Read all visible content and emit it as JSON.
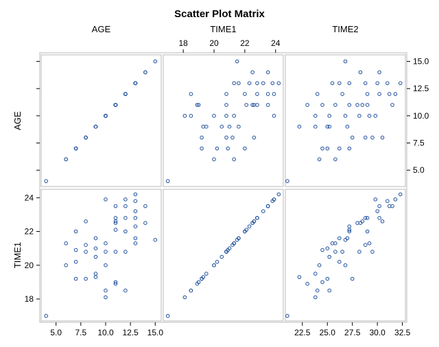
{
  "chart_data": {
    "type": "scatter",
    "title": "Scatter Plot Matrix",
    "variables": [
      "AGE",
      "TIME1",
      "TIME2"
    ],
    "marker_color": "#1f4f9a",
    "panel_border_color": "#b8b8b8",
    "axes": {
      "AGE": {
        "range": [
          3.5,
          15.6
        ],
        "ticks": [
          5.0,
          7.5,
          10.0,
          12.5,
          15.0
        ],
        "tick_labels": [
          "5.0",
          "7.5",
          "10.0",
          "12.5",
          "15.0"
        ]
      },
      "TIME1": {
        "range": [
          16.7,
          24.5
        ],
        "ticks": [
          18,
          20,
          22,
          24
        ],
        "tick_labels": [
          "18",
          "20",
          "22",
          "24"
        ]
      },
      "TIME2": {
        "range": [
          20.8,
          32.8
        ],
        "ticks": [
          22.5,
          25.0,
          27.5,
          30.0,
          32.5
        ],
        "tick_labels": [
          "22.5",
          "25.0",
          "27.5",
          "30.0",
          "32.5"
        ]
      }
    },
    "visible_panels": [
      {
        "row": "AGE",
        "col": "AGE"
      },
      {
        "row": "AGE",
        "col": "TIME1"
      },
      {
        "row": "AGE",
        "col": "TIME2"
      },
      {
        "row": "TIME1",
        "col": "AGE"
      },
      {
        "row": "TIME1",
        "col": "TIME1"
      },
      {
        "row": "TIME1",
        "col": "TIME2"
      }
    ],
    "observations": [
      {
        "AGE": 4,
        "TIME1": 17.0,
        "TIME2": 21.0
      },
      {
        "AGE": 6,
        "TIME1": 20.0,
        "TIME2": 24.2
      },
      {
        "AGE": 6,
        "TIME1": 21.3,
        "TIME2": 25.8
      },
      {
        "AGE": 7,
        "TIME1": 19.2,
        "TIME2": 25.0
      },
      {
        "AGE": 7,
        "TIME1": 20.2,
        "TIME2": 26.2
      },
      {
        "AGE": 7,
        "TIME1": 20.9,
        "TIME2": 24.5
      },
      {
        "AGE": 7,
        "TIME1": 22.0,
        "TIME2": 27.2
      },
      {
        "AGE": 8,
        "TIME1": 19.2,
        "TIME2": 27.5
      },
      {
        "AGE": 8,
        "TIME1": 20.8,
        "TIME2": 29.5
      },
      {
        "AGE": 8,
        "TIME1": 21.2,
        "TIME2": 28.8
      },
      {
        "AGE": 8,
        "TIME1": 22.6,
        "TIME2": 30.5
      },
      {
        "AGE": 9,
        "TIME1": 19.3,
        "TIME2": 22.2
      },
      {
        "AGE": 9,
        "TIME1": 19.5,
        "TIME2": 23.8
      },
      {
        "AGE": 9,
        "TIME1": 20.5,
        "TIME2": 25.2
      },
      {
        "AGE": 9,
        "TIME1": 21.0,
        "TIME2": 25.0
      },
      {
        "AGE": 9,
        "TIME1": 21.6,
        "TIME2": 27.0
      },
      {
        "AGE": 10,
        "TIME1": 18.1,
        "TIME2": 23.8
      },
      {
        "AGE": 10,
        "TIME1": 18.5,
        "TIME2": 25.2
      },
      {
        "AGE": 10,
        "TIME1": 20.0,
        "TIME2": 26.8
      },
      {
        "AGE": 10,
        "TIME1": 20.8,
        "TIME2": 28.2
      },
      {
        "AGE": 10,
        "TIME1": 21.3,
        "TIME2": 29.2
      },
      {
        "AGE": 10,
        "TIME1": 23.9,
        "TIME2": 29.8
      },
      {
        "AGE": 11,
        "TIME1": 18.9,
        "TIME2": 23.0
      },
      {
        "AGE": 11,
        "TIME1": 19.0,
        "TIME2": 24.5
      },
      {
        "AGE": 11,
        "TIME1": 20.8,
        "TIME2": 25.8
      },
      {
        "AGE": 11,
        "TIME1": 22.1,
        "TIME2": 27.2
      },
      {
        "AGE": 11,
        "TIME1": 22.5,
        "TIME2": 28.0
      },
      {
        "AGE": 11,
        "TIME1": 22.6,
        "TIME2": 28.5
      },
      {
        "AGE": 11,
        "TIME1": 22.8,
        "TIME2": 29.0
      },
      {
        "AGE": 11,
        "TIME1": 23.5,
        "TIME2": 31.5
      },
      {
        "AGE": 12,
        "TIME1": 18.5,
        "TIME2": 24.0
      },
      {
        "AGE": 12,
        "TIME1": 20.8,
        "TIME2": 26.5
      },
      {
        "AGE": 12,
        "TIME1": 22.0,
        "TIME2": 29.0
      },
      {
        "AGE": 12,
        "TIME1": 22.8,
        "TIME2": 30.2
      },
      {
        "AGE": 12,
        "TIME1": 23.5,
        "TIME2": 31.2
      },
      {
        "AGE": 12,
        "TIME1": 23.9,
        "TIME2": 31.8
      },
      {
        "AGE": 13,
        "TIME1": 21.3,
        "TIME2": 25.5
      },
      {
        "AGE": 13,
        "TIME1": 21.6,
        "TIME2": 26.2
      },
      {
        "AGE": 13,
        "TIME1": 22.3,
        "TIME2": 27.2
      },
      {
        "AGE": 13,
        "TIME1": 22.8,
        "TIME2": 28.8
      },
      {
        "AGE": 13,
        "TIME1": 23.2,
        "TIME2": 30.0
      },
      {
        "AGE": 13,
        "TIME1": 23.8,
        "TIME2": 31.0
      },
      {
        "AGE": 13,
        "TIME1": 24.2,
        "TIME2": 32.3
      },
      {
        "AGE": 14,
        "TIME1": 22.5,
        "TIME2": 28.3
      },
      {
        "AGE": 14,
        "TIME1": 23.5,
        "TIME2": 30.2
      },
      {
        "AGE": 15,
        "TIME1": 21.5,
        "TIME2": 26.8
      }
    ]
  }
}
